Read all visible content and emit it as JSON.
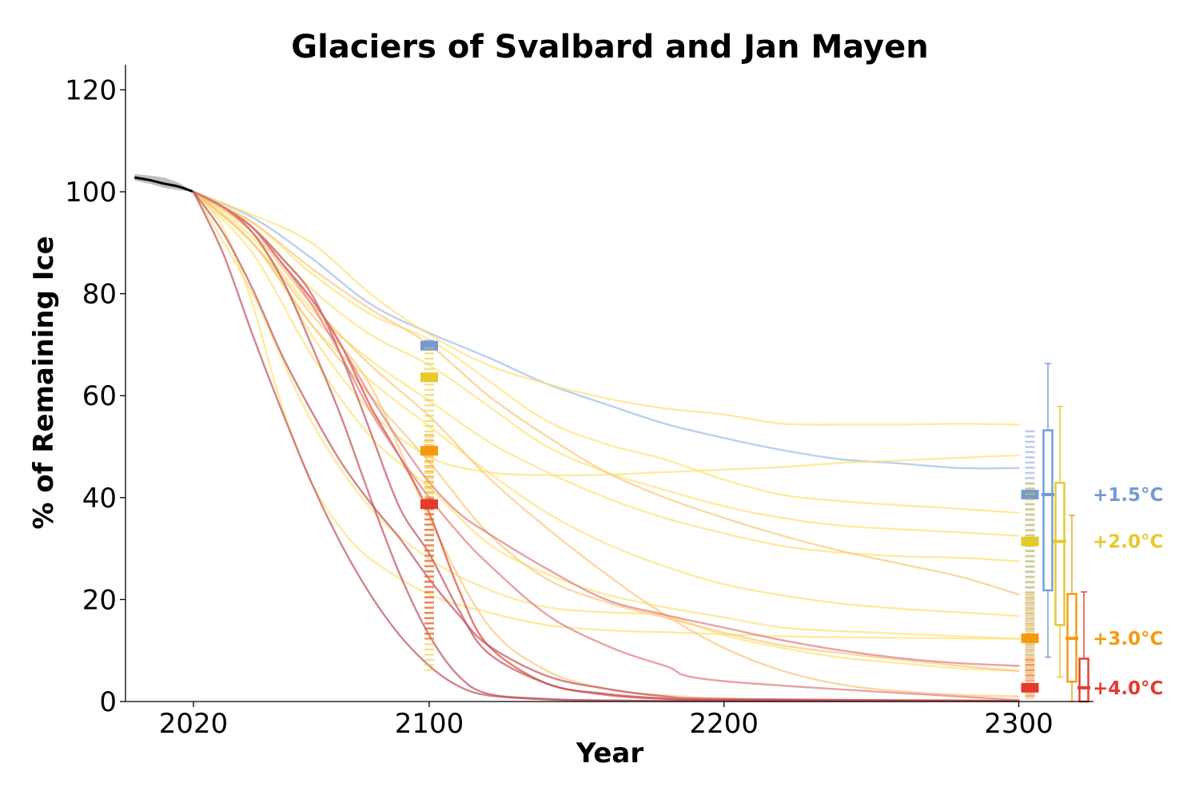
{
  "chart_data": {
    "type": "line",
    "title": "Glaciers of Svalbard and Jan Mayen",
    "xlabel": "Year",
    "ylabel": "% of Remaining Ice",
    "xlim": [
      1997,
      2325
    ],
    "ylim": [
      0,
      125
    ],
    "xticks": [
      "2020",
      "2100",
      "2200",
      "2300"
    ],
    "yticks": [
      "0",
      "20",
      "40",
      "60",
      "80",
      "100",
      "120"
    ],
    "grid": false,
    "historical": {
      "name": "",
      "color": "#000000",
      "x": [
        2000,
        2005,
        2010,
        2015,
        2020
      ],
      "y": [
        102.8,
        102.3,
        101.6,
        101.0,
        100.0
      ],
      "band": [
        [
          103.5,
          102.2
        ],
        [
          103.2,
          101.6
        ],
        [
          102.8,
          100.8
        ],
        [
          101.8,
          100.3
        ],
        [
          100.0,
          100.0
        ]
      ]
    },
    "scenarios": [
      {
        "label": "+1.5°C",
        "color": "#7399d6",
        "line_color": "#aac4ea",
        "median_2100": 69.8,
        "range_2100": [
          69.0,
          71.0
        ],
        "median_2300": 40.6,
        "box_2300": {
          "q1": 21.8,
          "median": 40.6,
          "q3": 53.2,
          "min": 8.7,
          "max": 66.3
        },
        "runs": [
          {
            "x": [
              2020,
              2040,
              2060,
              2080,
              2100,
              2120,
              2140,
              2160,
              2180,
              2200,
              2220,
              2240,
              2260,
              2280,
              2300
            ],
            "y": [
              100,
              95,
              87,
              78,
              72.3,
              67.5,
              62.3,
              58.3,
              54.5,
              51.7,
              49.3,
              47.5,
              46.7,
              45.8,
              45.8
            ]
          }
        ]
      },
      {
        "label": "+2.0°C",
        "color": "#e6c92b",
        "line_color": "#fce277",
        "median_2100": 63.6,
        "range_2100": [
          6.0,
          69.5
        ],
        "median_2300": 31.4,
        "box_2300": {
          "q1": 15.0,
          "median": 31.4,
          "q3": 42.9,
          "min": 4.8,
          "max": 57.9
        },
        "runs": [
          {
            "x": [
              2020,
              2040,
              2060,
              2080,
              2100,
              2120,
              2140,
              2160,
              2180,
              2200,
              2220,
              2240,
              2260,
              2280,
              2300
            ],
            "y": [
              100,
              95.5,
              90,
              80,
              72,
              66,
              62.3,
              59.5,
              57.5,
              56.3,
              54.5,
              54.3,
              54.3,
              54.5,
              54.3
            ]
          },
          {
            "x": [
              2020,
              2040,
              2060,
              2080,
              2100,
              2120,
              2140,
              2160,
              2180,
              2200,
              2220,
              2240,
              2260,
              2280,
              2300
            ],
            "y": [
              100,
              92,
              72,
              57,
              48,
              45,
              44.4,
              44.5,
              45,
              45.5,
              46,
              46.8,
              47.3,
              47.8,
              48.3
            ]
          },
          {
            "x": [
              2020,
              2040,
              2060,
              2080,
              2100,
              2120,
              2140,
              2160,
              2180,
              2200,
              2220,
              2240,
              2260,
              2280,
              2300
            ],
            "y": [
              100,
              94,
              84,
              76,
              71,
              63,
              55,
              50.5,
              47.5,
              43.5,
              40.5,
              39.3,
              38.5,
              37.8,
              37
            ]
          },
          {
            "x": [
              2020,
              2040,
              2060,
              2080,
              2100,
              2120,
              2140,
              2160,
              2180,
              2200,
              2220,
              2240,
              2260,
              2280,
              2300
            ],
            "y": [
              100,
              93,
              81,
              72,
              66,
              58,
              50,
              45,
              41.5,
              38.3,
              36,
              34.5,
              33.8,
              33.2,
              32.5
            ]
          },
          {
            "x": [
              2020,
              2040,
              2060,
              2080,
              2100,
              2120,
              2140,
              2160,
              2180,
              2200,
              2220,
              2240,
              2260,
              2280,
              2300
            ],
            "y": [
              100,
              91,
              77,
              67,
              59,
              51,
              45,
              40,
              36,
              33,
              30.5,
              29.2,
              28.5,
              28.2,
              27.5
            ]
          },
          {
            "x": [
              2020,
              2040,
              2060,
              2080,
              2100,
              2120,
              2140,
              2160,
              2180,
              2200,
              2220,
              2240,
              2260,
              2280,
              2300
            ],
            "y": [
              100,
              90,
              74,
              63,
              54,
              45,
              37,
              31,
              26.5,
              23,
              20.8,
              19.2,
              18.2,
              17.5,
              16.8
            ]
          },
          {
            "x": [
              2020,
              2040,
              2060,
              2080,
              2100,
              2120,
              2140,
              2160,
              2180,
              2200,
              2220,
              2240,
              2260,
              2280,
              2300
            ],
            "y": [
              100,
              88,
              68,
              52,
              42,
              31,
              25,
              21,
              18.5,
              16.5,
              14.5,
              13.8,
              13.3,
              12.8,
              12.3
            ]
          },
          {
            "x": [
              2020,
              2040,
              2060,
              2080,
              2100,
              2120,
              2140,
              2160,
              2180,
              2200,
              2220,
              2240,
              2260,
              2280,
              2300
            ],
            "y": [
              100,
              80,
              55,
              38,
              28,
              22,
              18.5,
              17.5,
              16.8,
              13,
              10.5,
              8.6,
              7.5,
              6.5,
              6.0
            ]
          },
          {
            "x": [
              2020,
              2030,
              2040,
              2050,
              2060,
              2070,
              2080,
              2100,
              2120,
              2140,
              2160,
              2180,
              2200,
              2220,
              2240,
              2260,
              2280,
              2300
            ],
            "y": [
              100,
              93,
              78,
              58,
              43,
              34,
              28,
              21,
              17.5,
              15,
              14,
              13.6,
              13.2,
              12.8,
              12.6,
              12.5,
              12.4,
              12.3
            ]
          }
        ]
      },
      {
        "label": "+3.0°C",
        "color": "#f59a0f",
        "line_color": "#fbc77a",
        "median_2100": 49.2,
        "range_2100": [
          40.0,
          52.5
        ],
        "median_2300": 12.4,
        "box_2300": {
          "q1": 3.9,
          "median": 12.4,
          "q3": 21.1,
          "min": 0.0,
          "max": 36.5
        },
        "runs": [
          {
            "x": [
              2020,
              2040,
              2060,
              2080,
              2100,
              2120,
              2140,
              2160,
              2180,
              2200,
              2220,
              2240,
              2260,
              2280,
              2300
            ],
            "y": [
              100,
              94,
              85,
              77,
              70,
              60,
              52,
              45,
              40,
              36,
              32.5,
              29.5,
              27,
              24.5,
              21
            ]
          },
          {
            "x": [
              2020,
              2040,
              2060,
              2080,
              2100,
              2120,
              2140,
              2160,
              2180,
              2200,
              2220,
              2240,
              2260,
              2280,
              2300
            ],
            "y": [
              100,
              92,
              78,
              66,
              56,
              44,
              34,
              25,
              17,
              10.5,
              6,
              3.3,
              2.0,
              1.3,
              1.0
            ]
          },
          {
            "x": [
              2020,
              2040,
              2060,
              2080,
              2100,
              2120,
              2140,
              2160,
              2180,
              2200,
              2220,
              2240,
              2260,
              2280,
              2300
            ],
            "y": [
              100,
              90,
              74,
              60,
              47,
              33,
              24,
              19.5,
              16.5,
              13.5,
              11,
              9.5,
              8.2,
              7,
              6
            ]
          },
          {
            "x": [
              2020,
              2040,
              2060,
              2080,
              2100,
              2120,
              2140,
              2160,
              2180,
              2200,
              2220,
              2240,
              2260,
              2280,
              2300
            ],
            "y": [
              100,
              90,
              76,
              62,
              36,
              15,
              6,
              2.5,
              1.2,
              0.6,
              0.4,
              0.3,
              0.3,
              0.3,
              0.3
            ]
          }
        ]
      },
      {
        "label": "+4.0°C",
        "color": "#e33b2e",
        "line_color": "#e07a7f",
        "median_2100": 38.7,
        "range_2100": [
          12.2,
          40.0
        ],
        "median_2300": 2.7,
        "box_2300": {
          "q1": 0.0,
          "median": 2.7,
          "q3": 8.4,
          "min": 0.0,
          "max": 21.5
        },
        "runs": [
          {
            "x": [
              2020,
              2030,
              2040,
              2050,
              2060,
              2070,
              2080,
              2090,
              2100,
              2110,
              2120,
              2140,
              2160,
              2180,
              2200,
              2300
            ],
            "y": [
              100,
              97,
              93,
              86,
              79,
              70,
              58,
              48,
              37,
              22,
              11,
              3.5,
              1.5,
              0.6,
              0.3,
              0.1
            ]
          },
          {
            "x": [
              2020,
              2030,
              2040,
              2050,
              2060,
              2070,
              2080,
              2090,
              2100,
              2110,
              2120,
              2140,
              2160,
              2180,
              2200,
              2300
            ],
            "y": [
              100,
              97,
              93,
              87,
              80,
              68,
              53,
              38,
              29,
              18,
              9.5,
              3.5,
              1.3,
              0.5,
              0.3,
              0.1
            ]
          },
          {
            "x": [
              2020,
              2030,
              2040,
              2050,
              2060,
              2070,
              2080,
              2090,
              2100,
              2110,
              2120,
              2140,
              2160,
              2180,
              2200,
              2300
            ],
            "y": [
              100,
              97,
              92,
              83,
              70,
              56,
              40,
              25,
              13,
              5,
              1.5,
              0.5,
              0.2,
              0.1,
              0.1,
              0.1
            ]
          },
          {
            "x": [
              2020,
              2030,
              2040,
              2050,
              2060,
              2070,
              2080,
              2090,
              2100,
              2110,
              2120,
              2140,
              2160,
              2180,
              2200,
              2300
            ],
            "y": [
              100,
              97,
              93,
              86,
              78,
              68,
              57,
              48,
              40,
              33,
              27,
              17,
              11,
              7,
              4,
              0.3
            ]
          },
          {
            "x": [
              2020,
              2030,
              2040,
              2050,
              2060,
              2070,
              2080,
              2090,
              2100,
              2110,
              2120,
              2140,
              2160,
              2180,
              2200,
              2220,
              2240,
              2260,
              2280,
              2300
            ],
            "y": [
              100,
              97,
              93,
              86,
              79,
              70,
              60,
              51,
              43,
              37,
              33,
              26,
              20,
              17,
              14.5,
              12,
              10,
              8.5,
              7.5,
              7
            ]
          },
          {
            "x": [
              2020,
              2030,
              2040,
              2050,
              2060,
              2070,
              2080,
              2090,
              2100,
              2110,
              2120,
              2140,
              2160,
              2180,
              2200,
              2300
            ],
            "y": [
              100,
              92,
              81,
              68,
              57,
              47,
              39,
              32,
              24,
              17,
              11,
              5,
              2.5,
              1.0,
              0.5,
              0.1
            ]
          },
          {
            "x": [
              2020,
              2030,
              2040,
              2050,
              2060,
              2070,
              2080,
              2090,
              2100,
              2110,
              2120,
              2140,
              2160,
              2180,
              2200,
              2300
            ],
            "y": [
              100,
              88,
              72,
              57,
              43,
              31,
              21,
              13,
              7,
              3,
              1.2,
              0.4,
              0.2,
              0.1,
              0.1,
              0.1
            ]
          }
        ]
      }
    ]
  }
}
